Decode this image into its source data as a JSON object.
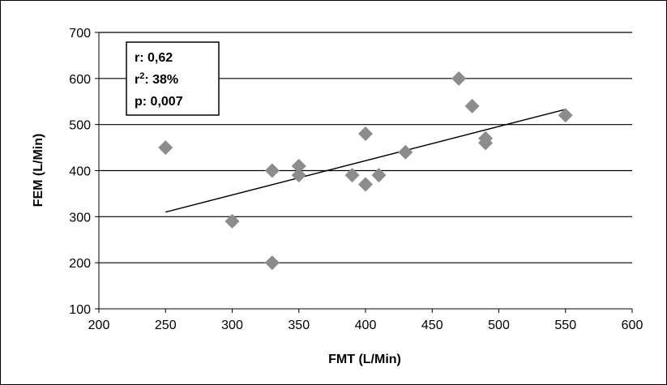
{
  "chart_data": {
    "type": "scatter",
    "title": "",
    "xlabel": "FMT (L/Min)",
    "ylabel": "FEM (L/Min)",
    "xlim": [
      200,
      600
    ],
    "ylim": [
      100,
      700
    ],
    "xticks": [
      200,
      250,
      300,
      350,
      400,
      450,
      500,
      550,
      600
    ],
    "yticks": [
      100,
      200,
      300,
      400,
      500,
      600,
      700
    ],
    "grid": "horizontal",
    "series": [
      {
        "marker": "diamond",
        "color": "#8c8c8c",
        "points": [
          {
            "x": 250,
            "y": 450
          },
          {
            "x": 300,
            "y": 290
          },
          {
            "x": 330,
            "y": 400
          },
          {
            "x": 330,
            "y": 200
          },
          {
            "x": 350,
            "y": 410
          },
          {
            "x": 350,
            "y": 390
          },
          {
            "x": 390,
            "y": 390
          },
          {
            "x": 400,
            "y": 480
          },
          {
            "x": 400,
            "y": 370
          },
          {
            "x": 410,
            "y": 390
          },
          {
            "x": 430,
            "y": 440
          },
          {
            "x": 470,
            "y": 600
          },
          {
            "x": 480,
            "y": 540
          },
          {
            "x": 490,
            "y": 470
          },
          {
            "x": 490,
            "y": 460
          },
          {
            "x": 550,
            "y": 520
          }
        ]
      }
    ],
    "trendline": {
      "x": [
        250,
        550
      ],
      "y": [
        310,
        533
      ],
      "color": "#000000"
    },
    "annotation": {
      "r_label": "r: 0,62",
      "r2_prefix": "r",
      "r2_sup": "2",
      "r2_suffix": ": 38%",
      "p_label": "p: 0,007"
    }
  }
}
